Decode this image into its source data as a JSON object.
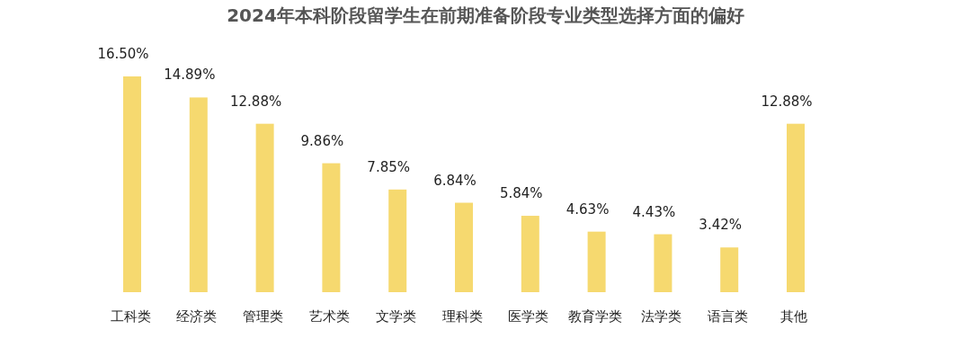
{
  "chart_data": {
    "type": "bar",
    "title": "2024年本科阶段留学生在前期准备阶段专业类型选择方面的偏好",
    "categories": [
      "工科类",
      "经济类",
      "管理类",
      "艺术类",
      "文学类",
      "理科类",
      "医学类",
      "教育学类",
      "法学类",
      "语言类",
      "其他"
    ],
    "values": [
      16.5,
      14.89,
      12.88,
      9.86,
      7.85,
      6.84,
      5.84,
      4.63,
      4.43,
      3.42,
      12.88
    ],
    "value_labels": [
      "16.50%",
      "14.89%",
      "12.88%",
      "9.86%",
      "7.85%",
      "6.84%",
      "5.84%",
      "4.63%",
      "4.43%",
      "3.42%",
      "12.88%"
    ],
    "color": "#f6d96f"
  }
}
